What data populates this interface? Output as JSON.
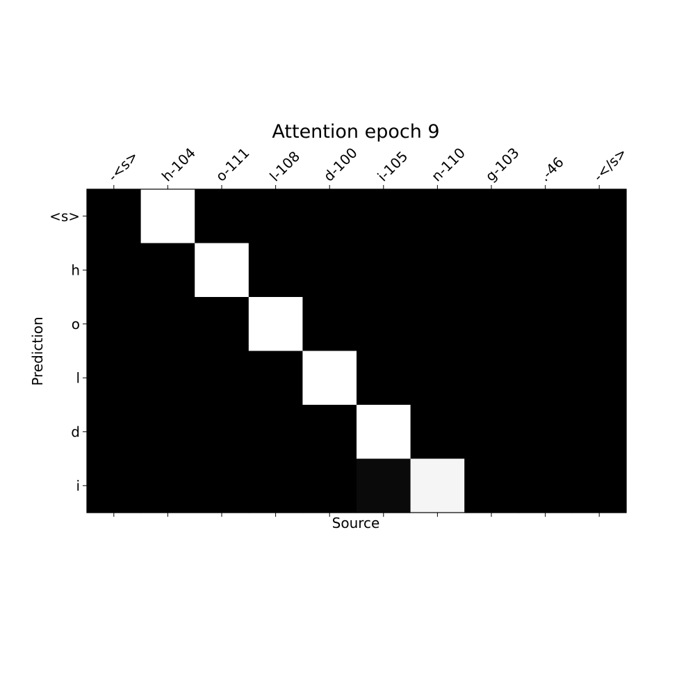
{
  "chart_data": {
    "type": "heatmap",
    "title": "Attention epoch 9",
    "xlabel": "Source",
    "ylabel": "Prediction",
    "x_ticks": [
      "-<s>",
      "h-104",
      "o-111",
      "l-108",
      "d-100",
      "i-105",
      "n-110",
      "g-103",
      ".-46",
      "-</s>"
    ],
    "y_ticks": [
      "<s>",
      "h",
      "o",
      "l",
      "d",
      "i"
    ],
    "colormap": "gray",
    "value_range": [
      0,
      1
    ],
    "values": [
      [
        0,
        1,
        0,
        0,
        0,
        0,
        0,
        0,
        0,
        0
      ],
      [
        0,
        0,
        1,
        0,
        0,
        0,
        0,
        0,
        0,
        0
      ],
      [
        0,
        0,
        0,
        1,
        0,
        0,
        0,
        0,
        0,
        0
      ],
      [
        0,
        0,
        0,
        0,
        1,
        0,
        0,
        0,
        0,
        0
      ],
      [
        0,
        0,
        0,
        0,
        0,
        1,
        0,
        0,
        0,
        0
      ],
      [
        0,
        0,
        0,
        0,
        0,
        0.04,
        0.96,
        0,
        0,
        0
      ]
    ],
    "grid": false,
    "x_ticks_position": "top"
  }
}
